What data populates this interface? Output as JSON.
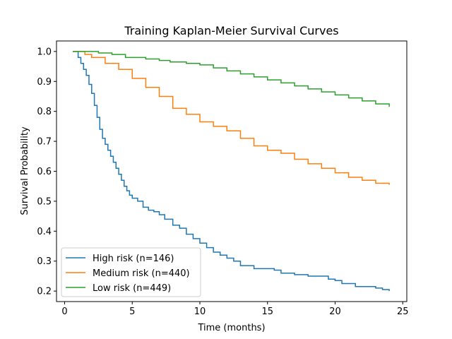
{
  "chart_data": {
    "type": "line",
    "step": true,
    "title": "Training Kaplan-Meier Survival Curves",
    "xlabel": "Time (months)",
    "ylabel": "Survival Probability",
    "xlim": [
      -0.6,
      25.3
    ],
    "ylim": [
      0.165,
      1.035
    ],
    "xticks": [
      0,
      5,
      10,
      15,
      20,
      25
    ],
    "xtick_labels": [
      "0",
      "5",
      "10",
      "15",
      "20",
      "25"
    ],
    "yticks": [
      0.2,
      0.3,
      0.4,
      0.5,
      0.6,
      0.7,
      0.8,
      0.9,
      1.0
    ],
    "ytick_labels": [
      "0.2",
      "0.3",
      "0.4",
      "0.5",
      "0.6",
      "0.7",
      "0.8",
      "0.9",
      "1.0"
    ],
    "grid": false,
    "legend_position": "lower-left",
    "series": [
      {
        "name": "High risk (n=146)",
        "color": "#1f77b4",
        "x": [
          0.6,
          1.0,
          1.2,
          1.4,
          1.6,
          1.8,
          2.0,
          2.2,
          2.4,
          2.6,
          2.8,
          3.0,
          3.2,
          3.4,
          3.6,
          3.8,
          4.0,
          4.2,
          4.4,
          4.6,
          4.8,
          5.0,
          5.4,
          5.8,
          6.2,
          6.6,
          7.0,
          7.4,
          8.0,
          8.5,
          9.0,
          9.5,
          10.0,
          10.5,
          11.0,
          11.5,
          12.0,
          12.5,
          13.0,
          14.0,
          15.5,
          16.0,
          17.0,
          18.0,
          19.5,
          20.0,
          20.5,
          21.5,
          23.0,
          23.5,
          24.0
        ],
        "y": [
          1.0,
          0.98,
          0.96,
          0.94,
          0.92,
          0.89,
          0.86,
          0.82,
          0.78,
          0.74,
          0.71,
          0.69,
          0.67,
          0.65,
          0.63,
          0.61,
          0.59,
          0.57,
          0.55,
          0.535,
          0.52,
          0.51,
          0.5,
          0.48,
          0.47,
          0.465,
          0.455,
          0.44,
          0.42,
          0.41,
          0.39,
          0.375,
          0.36,
          0.345,
          0.33,
          0.32,
          0.31,
          0.3,
          0.285,
          0.275,
          0.27,
          0.26,
          0.255,
          0.25,
          0.24,
          0.235,
          0.225,
          0.215,
          0.21,
          0.205,
          0.2
        ]
      },
      {
        "name": "Medium risk (n=440)",
        "color": "#ff7f0e",
        "x": [
          0.6,
          1.5,
          2.0,
          3.0,
          4.0,
          5.0,
          6.0,
          7.0,
          8.0,
          9.0,
          10.0,
          11.0,
          12.0,
          13.0,
          14.0,
          15.0,
          16.0,
          17.0,
          18.0,
          19.0,
          20.0,
          21.0,
          22.0,
          23.0,
          24.0
        ],
        "y": [
          1.0,
          0.99,
          0.98,
          0.96,
          0.94,
          0.91,
          0.88,
          0.85,
          0.81,
          0.79,
          0.765,
          0.75,
          0.735,
          0.71,
          0.685,
          0.67,
          0.66,
          0.64,
          0.625,
          0.61,
          0.595,
          0.58,
          0.57,
          0.56,
          0.555
        ]
      },
      {
        "name": "Low risk (n=449)",
        "color": "#2ca02c",
        "x": [
          0.6,
          2.5,
          3.5,
          4.5,
          6.0,
          7.0,
          7.8,
          9.0,
          10.0,
          11.0,
          12.0,
          13.0,
          14.0,
          15.0,
          16.0,
          17.0,
          18.0,
          19.0,
          20.0,
          21.0,
          22.0,
          23.0,
          24.0
        ],
        "y": [
          1.0,
          0.995,
          0.99,
          0.98,
          0.975,
          0.97,
          0.965,
          0.96,
          0.955,
          0.945,
          0.935,
          0.925,
          0.915,
          0.905,
          0.895,
          0.885,
          0.875,
          0.865,
          0.855,
          0.845,
          0.835,
          0.825,
          0.815
        ]
      }
    ]
  }
}
